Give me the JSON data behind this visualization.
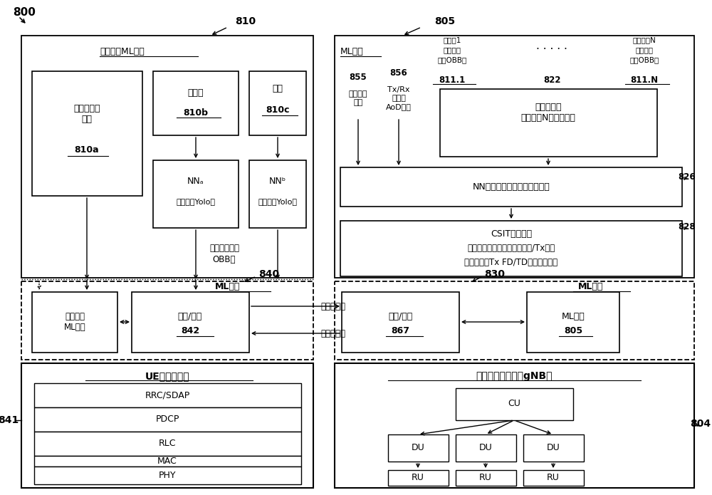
{
  "bg_color": "#ffffff",
  "lc": "#000000",
  "fig_w": 10.0,
  "fig_h": 6.95,
  "dpi": 100,
  "texts": {
    "800": "800",
    "805": "805",
    "810": "810",
    "826": "826",
    "828": "828",
    "830": "830",
    "840": "840",
    "841": "841",
    "842": "842",
    "855": "855",
    "856": "856",
    "867": "867",
    "804": "804",
    "810a": "810a",
    "810b": "810b",
    "810c": "810c",
    "811_1": "811.1",
    "822": "822",
    "811_N": "811.N",
    "sensor_ml_func": "传感器和ML功能",
    "sensor_cover_info": "传感器覆盖\n信息",
    "radar_cloud": "雷达云",
    "camera": "相机",
    "NNa_line1": "NNₐ",
    "NNa_line2": "（例如，Yolo）",
    "NNb_line1": "NNᵇ",
    "NNb_line2": "（例如，Yolo）",
    "feature_obb_line1": "特征（例如，",
    "feature_obb_line2": "OBB）",
    "ml_engine": "ML引擎",
    "vehicle1_line1": "交通工1",
    "vehicle1_line2": "特征（例",
    "vehicle1_line3": "如，OBB）",
    "vehicleN_line1": "交通工具N",
    "vehicleN_line2": "特征（例",
    "vehicleN_line3": "如，OBB）",
    "dots": "· · · · ·",
    "sense_cover_agg": "感测覆盖\n聚合",
    "tx_rx_aod": "Tx/Rx\n位置、\nAoD等。",
    "feature_agg": "特征聚合器\n（例如，N信道输入）",
    "NN_beam": "NN（例如，波束阻挡预测器）",
    "CSIT_line1": "CSIT特征预测",
    "CSIT_line2": "（例如，波束阻挡、潜在波束/Tx空间",
    "CSIT_line3": "预译码器、Tx FD/TD预译码器等）",
    "ML_service": "ML服务",
    "adaptive_sensing": "自适应感测",
    "adaptive_config": "自适应配置",
    "sensor_ml_small": "传感器和\nML功能",
    "ctrl_manage": "控制/管理",
    "UE_modem": "UE调制解调器",
    "RRC_SDAP": "RRC/SDAP",
    "PDCP": "PDCP",
    "RLC": "RLC",
    "MAC": "MAC",
    "PHY": "PHY",
    "gNB": "无线电接入网络（gNB）",
    "CU": "CU",
    "DU": "DU",
    "RU": "RU"
  }
}
